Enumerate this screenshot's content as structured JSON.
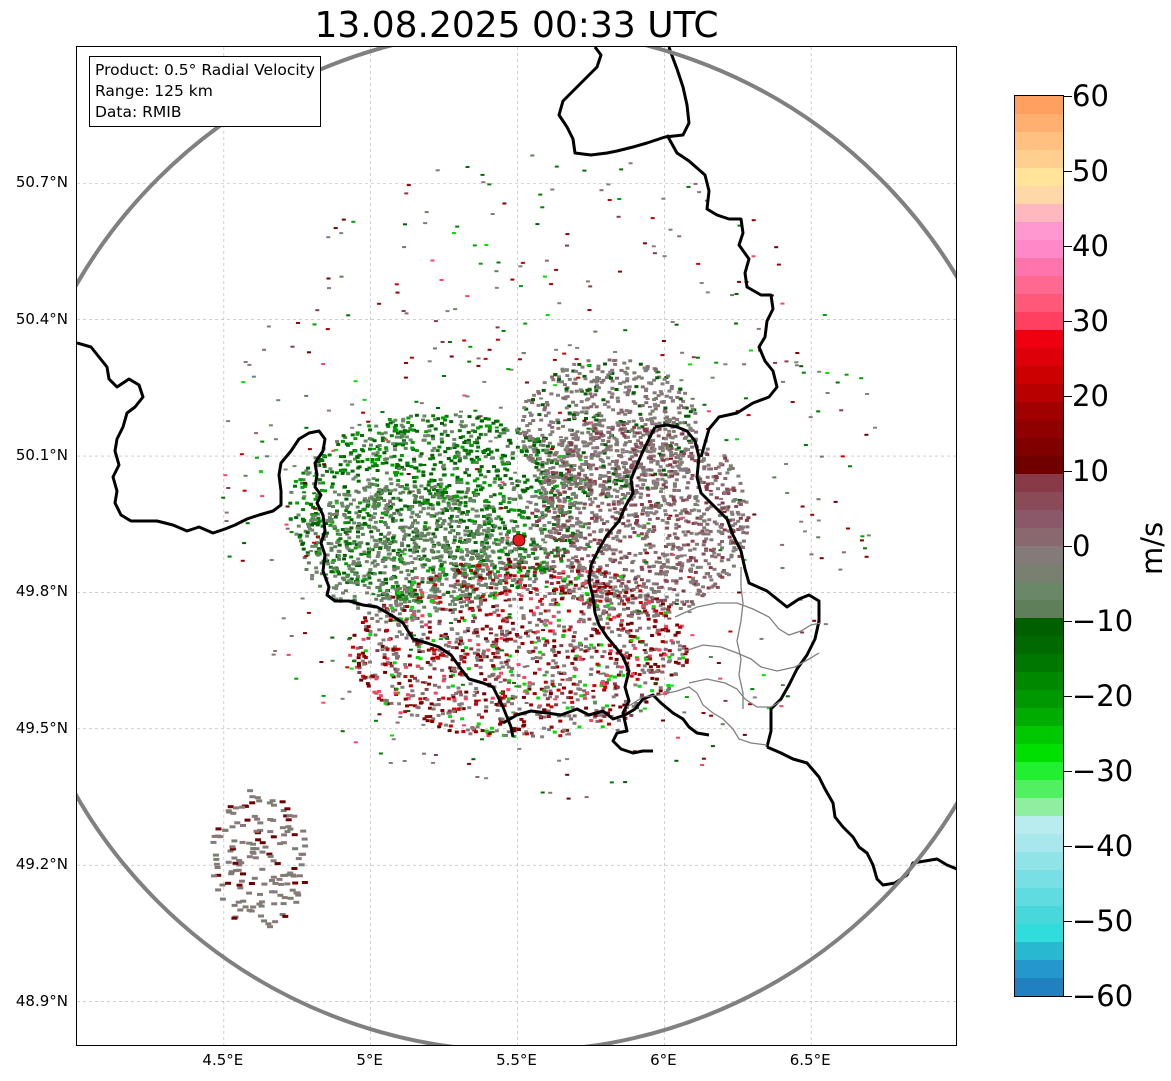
{
  "title": "13.08.2025 00:33 UTC",
  "info_box": {
    "product": "Product: 0.5° Radial Velocity",
    "range": "Range: 125 km",
    "data": "Data: RMIB"
  },
  "map": {
    "x_ticks": [
      "4.5°E",
      "5°E",
      "5.5°E",
      "6°E",
      "6.5°E"
    ],
    "y_ticks": [
      "50.7°N",
      "50.4°N",
      "50.1°N",
      "49.8°N",
      "49.5°N",
      "49.2°N",
      "48.9°N"
    ],
    "lon_range": [
      4.0,
      7.0
    ],
    "lat_range": [
      48.8,
      51.0
    ],
    "radar_site": {
      "lon": 5.505,
      "lat": 49.915
    },
    "range_ring_km": 125,
    "colors": {
      "border": "#000000",
      "subborder": "#808080",
      "range_ring": "#808080",
      "grid": "#b0b0b0",
      "radar_site": "#e41a1c"
    }
  },
  "colorbar": {
    "unit": "m/s",
    "min": -60,
    "max": 60,
    "tick_labels": [
      "60",
      "50",
      "40",
      "30",
      "20",
      "10",
      "0",
      "−10",
      "−20",
      "−30",
      "−40",
      "−50",
      "−60"
    ],
    "tick_values": [
      60,
      50,
      40,
      30,
      20,
      10,
      0,
      -10,
      -20,
      -30,
      -40,
      -50,
      -60
    ],
    "colors_top_to_bottom": [
      "#ffa060",
      "#ffb070",
      "#ffc080",
      "#ffcf90",
      "#ffe49a",
      "#ffd8a8",
      "#ffb8c0",
      "#ff98d0",
      "#ff88c8",
      "#ff74ac",
      "#ff6890",
      "#ff5878",
      "#ff4060",
      "#ee0010",
      "#dd0008",
      "#cc0000",
      "#b80000",
      "#a00000",
      "#900000",
      "#800000",
      "#700000",
      "#883a48",
      "#8a4a58",
      "#8a5868",
      "#8a6870",
      "#857a7a",
      "#7a8070",
      "#6a8868",
      "#5e7f5a",
      "#006000",
      "#006a00",
      "#007800",
      "#008800",
      "#009800",
      "#00ac00",
      "#00c800",
      "#00e000",
      "#20f030",
      "#50f060",
      "#90eea0",
      "#b8ecef",
      "#a8e8ec",
      "#90e4e8",
      "#78e0e4",
      "#60dce0",
      "#48d8dc",
      "#30dcdc",
      "#28b8d0",
      "#2498cc",
      "#2080c0"
    ]
  }
}
